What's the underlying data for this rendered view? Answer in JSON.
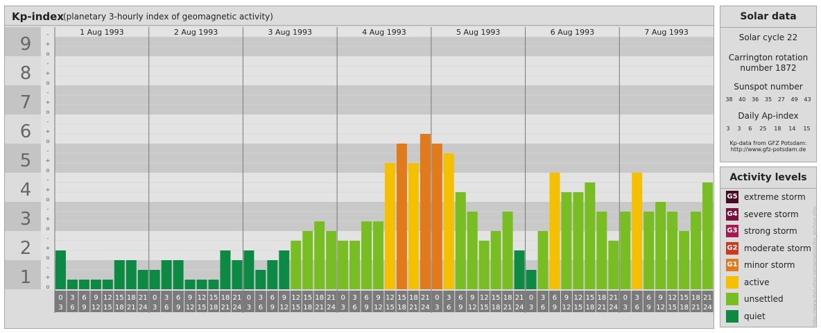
{
  "header": {
    "title": "Kp-index",
    "subtitle": "(planetary 3-hourly index of geomagnetic activity)"
  },
  "solar_data": {
    "heading": "Solar data",
    "solar_cycle": "Solar cycle 22",
    "carrington_line1": "Carrington rotation",
    "carrington_line2": "number 1872",
    "sunspot_heading": "Sunspot number",
    "sunspot_values": [
      "38",
      "40",
      "36",
      "35",
      "27",
      "49",
      "43"
    ],
    "ap_heading": "Daily Ap-index",
    "ap_values": [
      "3",
      "3",
      "6",
      "25",
      "18",
      "14",
      "15"
    ],
    "source_line1": "Kp-data from GFZ Potsdam:",
    "source_line2": "http://www.gfz-potsdam.de"
  },
  "activity_levels": {
    "heading": "Activity levels",
    "items": [
      {
        "badge": "G5",
        "label": "extreme storm",
        "color": "#4a0a26"
      },
      {
        "badge": "G4",
        "label": "severe storm",
        "color": "#78113e"
      },
      {
        "badge": "G3",
        "label": "strong storm",
        "color": "#a8174f"
      },
      {
        "badge": "G2",
        "label": "moderate storm",
        "color": "#c93a1e"
      },
      {
        "badge": "G1",
        "label": "minor storm",
        "color": "#e07a1b"
      },
      {
        "badge": "",
        "label": "active",
        "color": "#f5c000"
      },
      {
        "badge": "",
        "label": "unsettled",
        "color": "#78be22"
      },
      {
        "badge": "",
        "label": "quiet",
        "color": "#0c8a44"
      }
    ]
  },
  "credit": "http://www.theusher.net/amateur/kp_archive.php",
  "chart_data": {
    "type": "bar",
    "title": "Kp-index",
    "subtitle": "(planetary 3-hourly index of geomagnetic activity)",
    "ylim": [
      0,
      9
    ],
    "y_major_ticks": [
      "0",
      "1",
      "2",
      "3",
      "4",
      "5",
      "6",
      "7",
      "8",
      "9"
    ],
    "y_minor_ticks": [
      "o",
      "+",
      "-"
    ],
    "days": [
      "1 Aug 1993",
      "2 Aug 1993",
      "3 Aug 1993",
      "4 Aug 1993",
      "5 Aug 1993",
      "6 Aug 1993",
      "7 Aug 1993"
    ],
    "interval_start": [
      "0",
      "3",
      "6",
      "9",
      "12",
      "15",
      "18",
      "21"
    ],
    "interval_end": [
      "3",
      "6",
      "9",
      "12",
      "15",
      "18",
      "21",
      "24"
    ],
    "values": [
      1.333,
      0.333,
      0.333,
      0.333,
      0.333,
      1,
      1,
      0.667,
      0.667,
      1,
      1,
      0.333,
      0.333,
      0.333,
      1.333,
      1,
      1.333,
      0.667,
      1,
      1.333,
      1.667,
      2,
      2.333,
      2,
      1.667,
      1.667,
      2.333,
      2.333,
      4.333,
      5,
      4.333,
      5.333,
      5,
      4.667,
      3.333,
      2.667,
      1.667,
      2,
      2.667,
      1.333,
      0.667,
      2,
      4,
      3.333,
      3.333,
      3.667,
      2.667,
      1.667,
      2.667,
      4,
      2.667,
      3,
      2.667,
      2,
      2.667,
      3.667
    ],
    "level_colors": {
      "quiet": "#0c8a44",
      "unsettled": "#78be22",
      "active": "#f5c000",
      "minor_storm": "#e07a1b"
    },
    "grid": true
  }
}
